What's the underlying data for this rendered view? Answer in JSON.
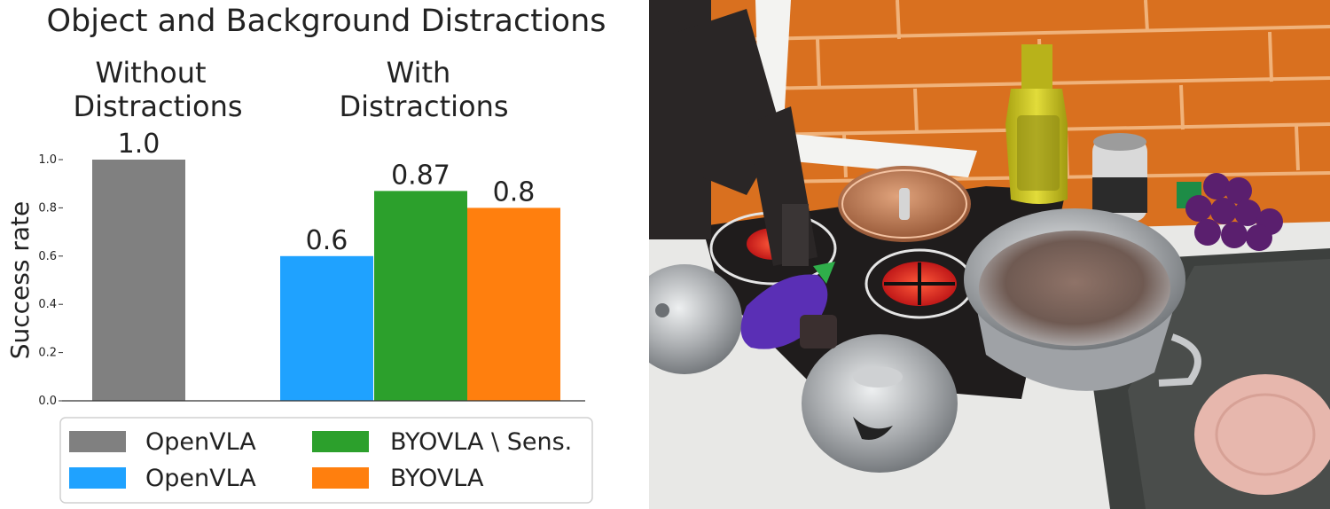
{
  "chart_data": {
    "type": "bar",
    "title": "Object and Background Distractions",
    "ylabel": "Success rate",
    "ylim": [
      0,
      1.0
    ],
    "yticks": [
      0.0,
      0.2,
      0.4,
      0.6,
      0.8,
      1.0
    ],
    "ytick_labels": [
      "0.0",
      "0.2",
      "0.4",
      "0.6",
      "0.8",
      "1.0"
    ],
    "grid": false,
    "groups": [
      {
        "label_lines": [
          "Without",
          "Distractions"
        ],
        "bars": [
          0
        ]
      },
      {
        "label_lines": [
          "With",
          "Distractions"
        ],
        "bars": [
          1,
          2,
          3
        ]
      }
    ],
    "bars": [
      {
        "series": "OpenVLA",
        "value": 1.0,
        "label": "1.0",
        "color": "#808080"
      },
      {
        "series": "OpenVLA",
        "value": 0.6,
        "label": "0.6",
        "color": "#1fa2ff"
      },
      {
        "series": "BYOVLA \\ Sens.",
        "value": 0.87,
        "label": "0.87",
        "color": "#2ca02c"
      },
      {
        "series": "BYOVLA",
        "value": 0.8,
        "label": "0.8",
        "color": "#ff7f0e"
      }
    ],
    "legend": {
      "placement": "bottom",
      "entries": [
        {
          "label": "OpenVLA",
          "color": "#808080"
        },
        {
          "label": "BYOVLA \\ Sens.",
          "color": "#2ca02c"
        },
        {
          "label": "OpenVLA",
          "color": "#1fa2ff"
        },
        {
          "label": "BYOVLA",
          "color": "#ff7f0e"
        }
      ]
    }
  },
  "photo": {
    "subject": "robot-arm-toy-kitchen-stove",
    "palette": {
      "tile": "#d9701f",
      "stove": "#1f1c1c",
      "counter": "#e8e8e6",
      "sink": "#3d403e",
      "steel": "#b7b9bb",
      "lid": "#b06a43",
      "eggplant": "#5a2fb5",
      "grapes": "#5a1f6e",
      "bottle": "#c9c21e",
      "plate": "#e7b7ad"
    }
  }
}
